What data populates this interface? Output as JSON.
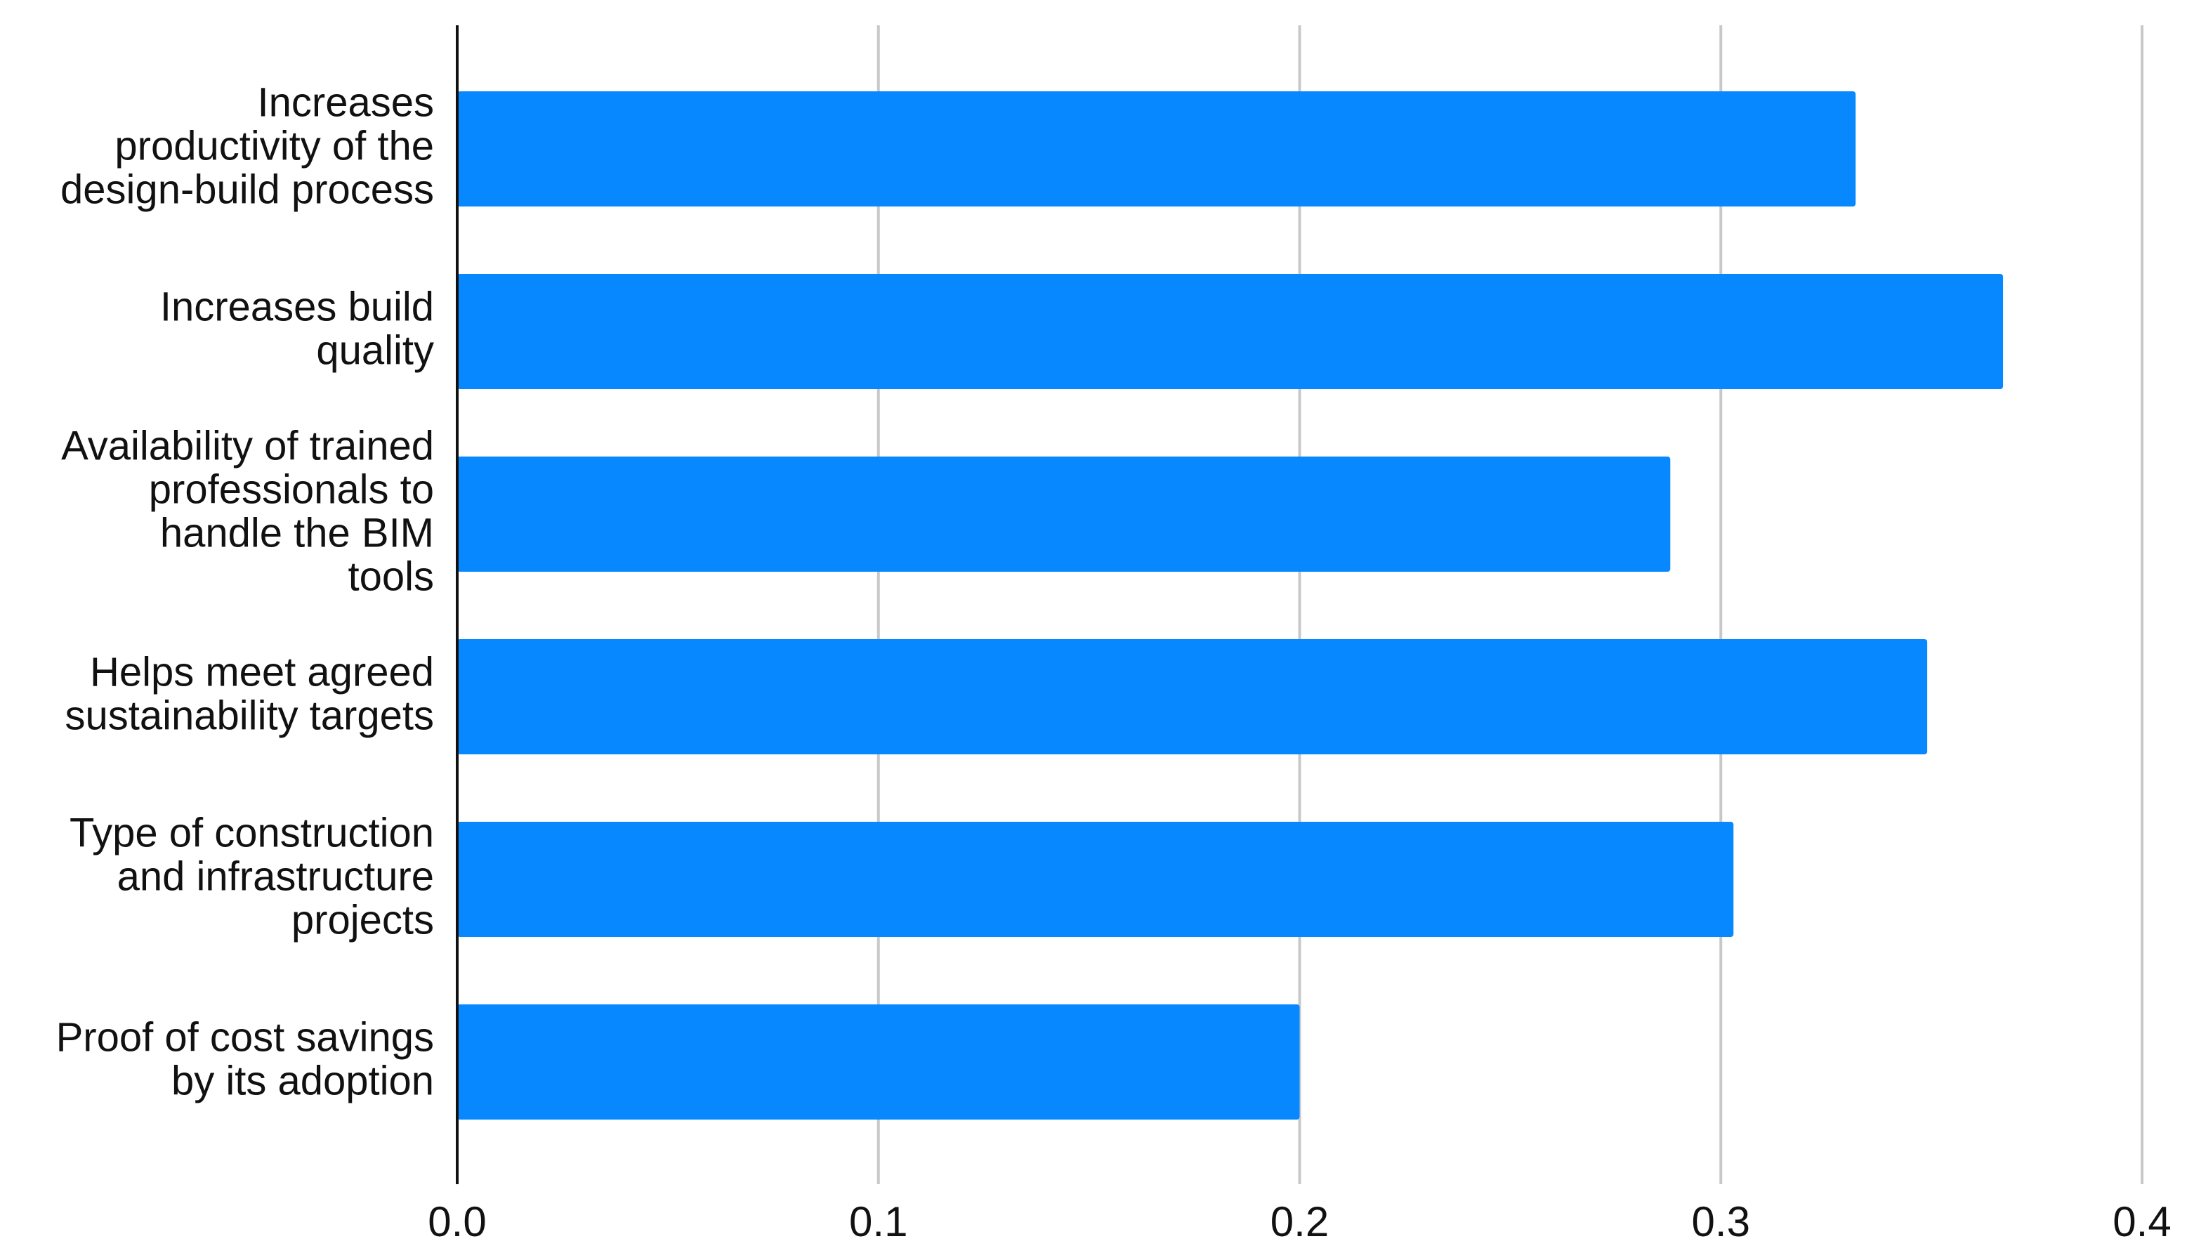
{
  "chart_data": {
    "type": "bar",
    "orientation": "horizontal",
    "categories": [
      [
        "Increases",
        "productivity of the",
        "design-build process"
      ],
      [
        "Increases build",
        "quality"
      ],
      [
        "Availability of trained",
        "professionals to",
        "handle the BIM",
        "tools"
      ],
      [
        "Helps meet agreed",
        "sustainability targets"
      ],
      [
        "Type of construction",
        "and infrastructure",
        "projects"
      ],
      [
        "Proof of cost savings",
        "by its adoption"
      ]
    ],
    "values": [
      0.332,
      0.367,
      0.288,
      0.349,
      0.303,
      0.2
    ],
    "color": "#0788ff",
    "xlim": [
      0,
      0.4
    ],
    "xticks": [
      {
        "value": 0,
        "label": "0.0"
      },
      0.1,
      0.2,
      0.3,
      0.4
    ],
    "grid": true
  }
}
